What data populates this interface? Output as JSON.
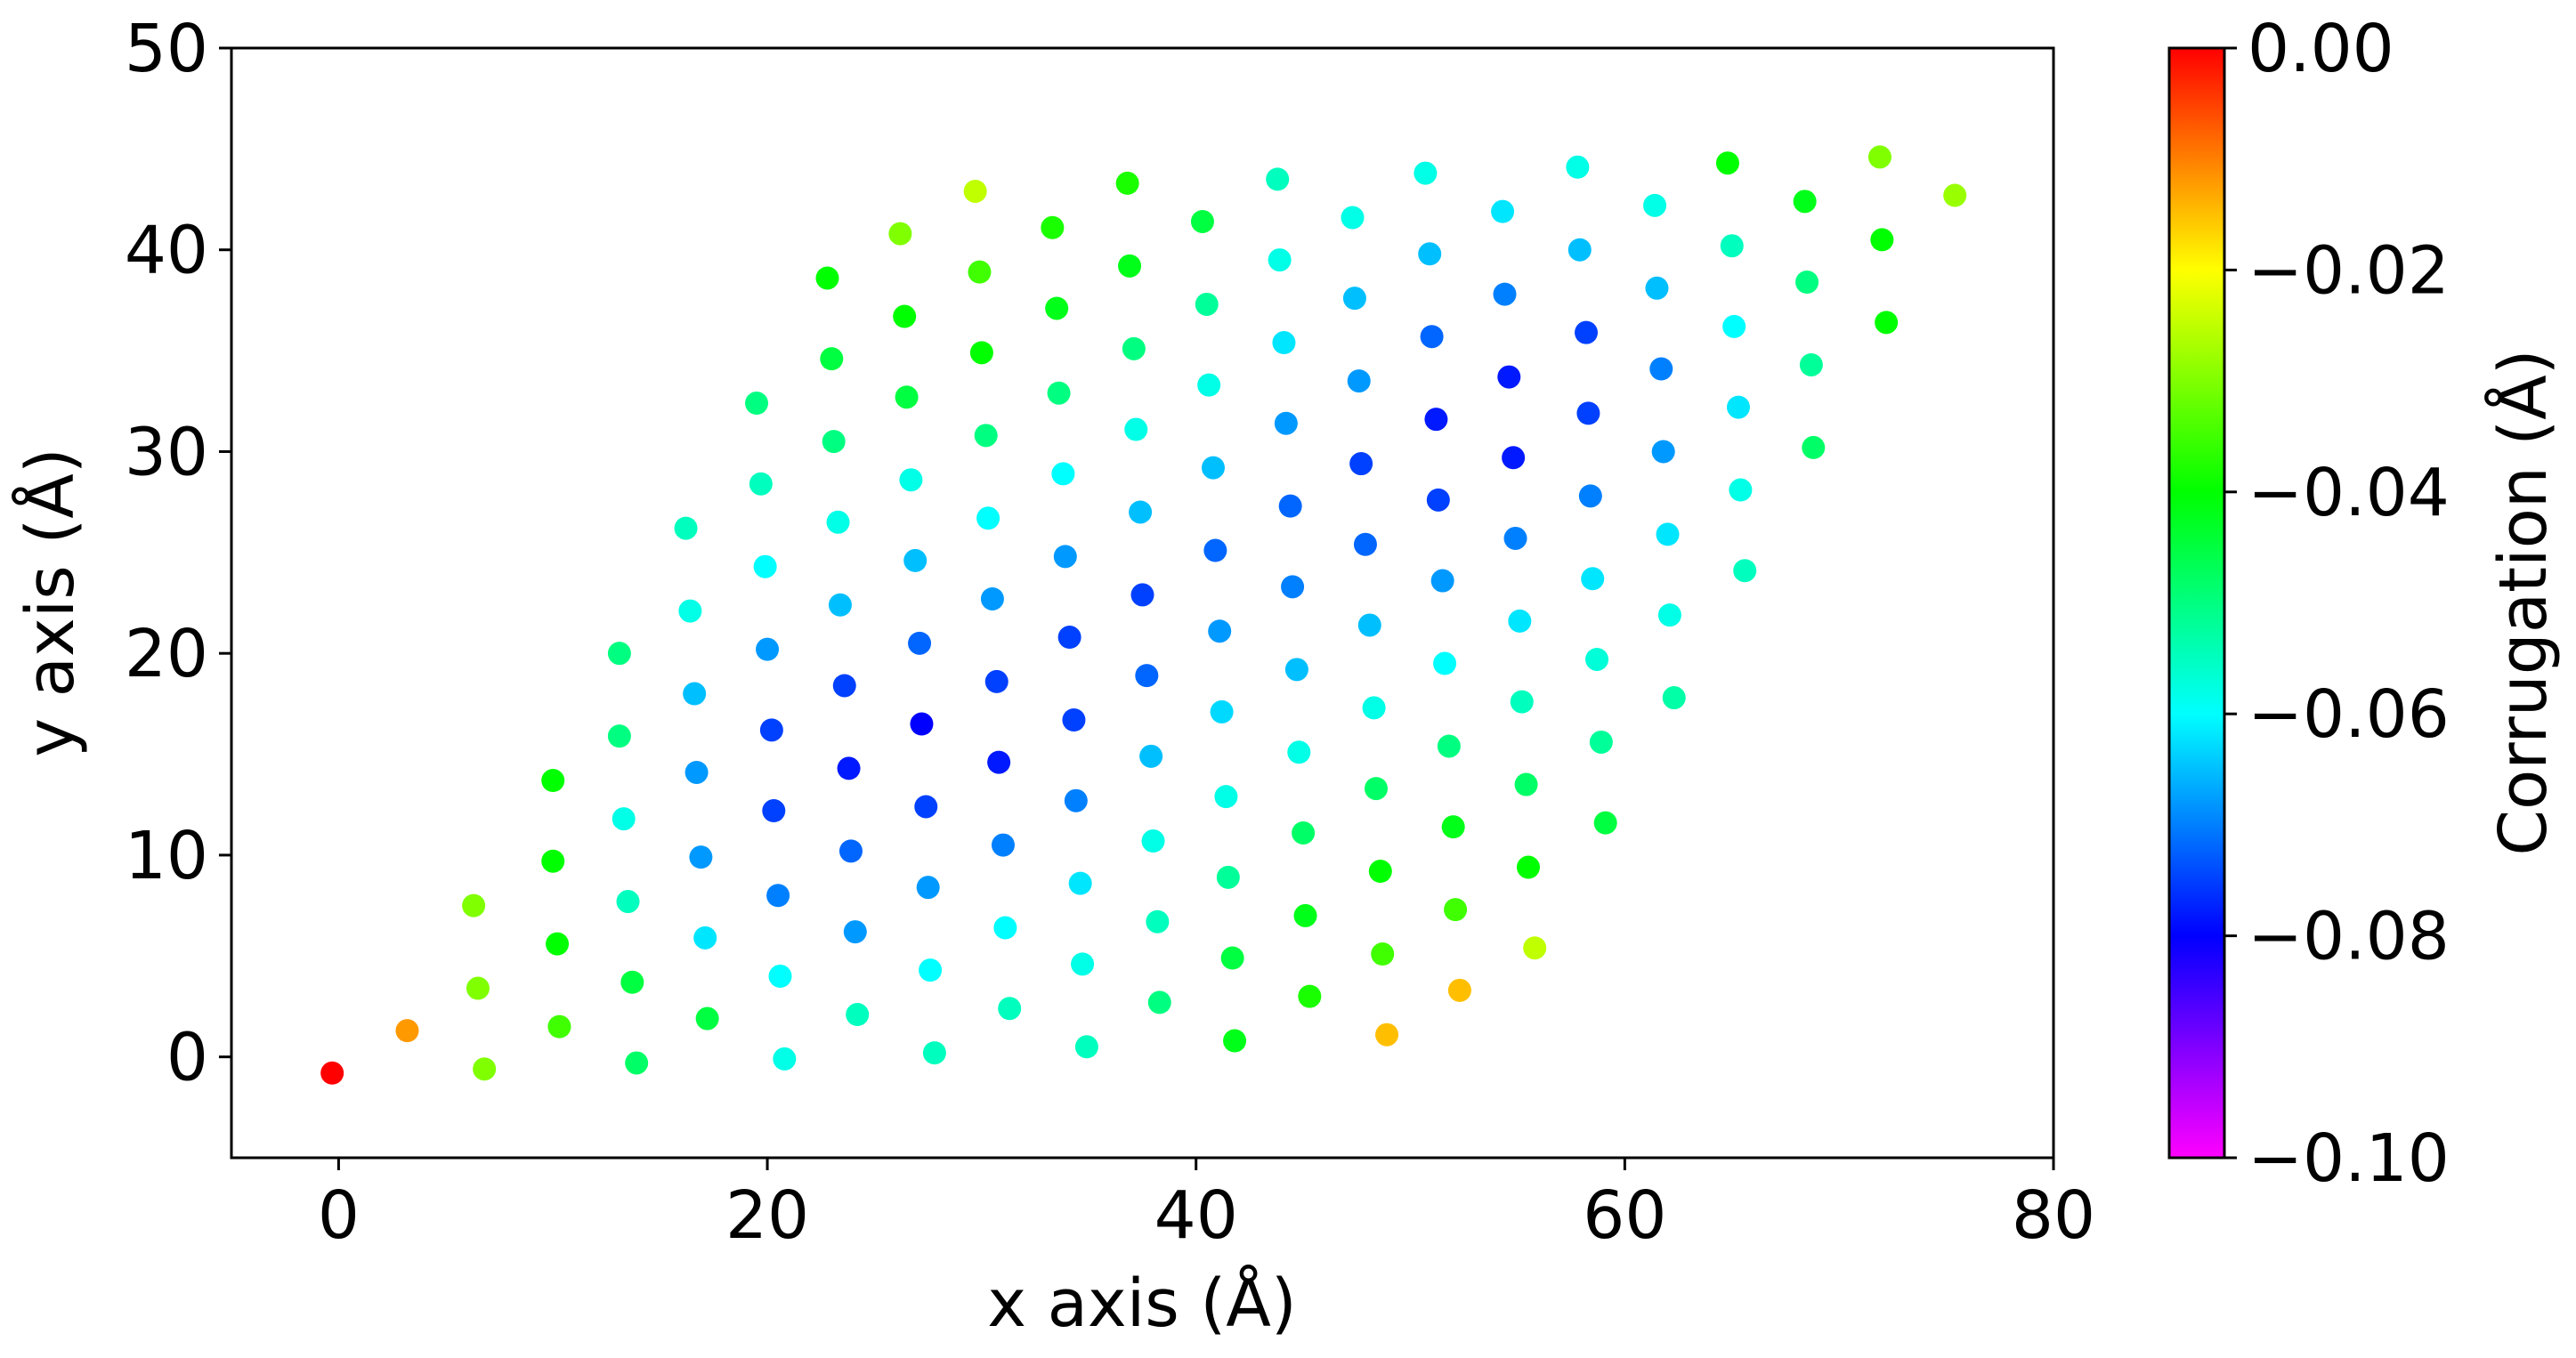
{
  "chart_data": {
    "type": "scatter",
    "xlabel": "x axis (Å)",
    "ylabel": "y axis (Å)",
    "xlim": [
      -5,
      80
    ],
    "ylim": [
      -5,
      50
    ],
    "xticks": [
      0,
      20,
      40,
      60,
      80
    ],
    "yticks": [
      0,
      10,
      20,
      30,
      40,
      50
    ],
    "grid": false,
    "x": [
      -0.3,
      3.2,
      6.8,
      6.5,
      6.3,
      10,
      10,
      10.2,
      10.3,
      13.1,
      13.1,
      13.3,
      13.5,
      13.7,
      13.9,
      16.2,
      16.4,
      16.6,
      16.7,
      16.9,
      17.1,
      17.2,
      19.5,
      19.7,
      19.9,
      20.0,
      20.2,
      20.3,
      20.5,
      20.6,
      20.8,
      22.8,
      23.0,
      23.1,
      23.3,
      23.4,
      23.6,
      23.8,
      23.9,
      24.1,
      24.2,
      26.2,
      26.4,
      26.5,
      26.7,
      26.9,
      27.1,
      27.2,
      27.4,
      27.5,
      27.6,
      27.8,
      29.7,
      29.9,
      30.0,
      30.2,
      30.3,
      30.5,
      30.7,
      30.8,
      31.0,
      31.1,
      31.3,
      33.3,
      33.5,
      33.6,
      33.8,
      33.9,
      34.1,
      34.3,
      34.4,
      34.6,
      34.7,
      34.9,
      36.8,
      36.9,
      37.1,
      37.2,
      37.4,
      37.5,
      37.7,
      37.9,
      38.0,
      38.2,
      38.3,
      40.3,
      40.5,
      40.6,
      40.8,
      40.9,
      41.1,
      41.2,
      41.4,
      41.5,
      41.7,
      41.8,
      43.8,
      43.9,
      44.1,
      44.2,
      44.4,
      44.5,
      44.7,
      44.8,
      45.0,
      45.1,
      45.3,
      47.3,
      47.4,
      47.6,
      47.7,
      47.9,
      48.1,
      48.3,
      48.4,
      48.6,
      48.7,
      48.9,
      50.7,
      50.9,
      51.0,
      51.2,
      51.3,
      51.5,
      51.6,
      51.8,
      52.0,
      52.1,
      52.3,
      54.3,
      54.4,
      54.6,
      54.8,
      54.9,
      55.1,
      55.2,
      55.4,
      55.5,
      55.8,
      57.8,
      57.9,
      58.2,
      58.3,
      58.4,
      58.5,
      58.7,
      58.9,
      59.1,
      61.4,
      61.5,
      61.7,
      61.8,
      62.0,
      62.1,
      62.3,
      64.8,
      65.0,
      65.1,
      65.3,
      65.4,
      65.6,
      68.4,
      68.5,
      68.7,
      68.8,
      71.9,
      72.0,
      72.2,
      75.4
    ],
    "values": [
      -0.8,
      1.3,
      -0.6,
      3.4,
      7.5,
      13.7,
      9.7,
      5.6,
      1.5,
      20,
      15.9,
      11.8,
      7.7,
      3.7,
      -0.3,
      26.2,
      22.1,
      18.0,
      14.1,
      9.9,
      5.9,
      1.9,
      32.4,
      28.4,
      24.3,
      20.2,
      16.2,
      12.2,
      8.0,
      4.0,
      -0.1,
      38.6,
      34.6,
      30.5,
      26.5,
      22.4,
      18.4,
      14.3,
      10.2,
      6.2,
      2.1,
      40.8,
      36.7,
      32.7,
      28.6,
      24.6,
      20.5,
      16.5,
      12.4,
      8.4,
      4.3,
      0.2,
      42.9,
      38.9,
      34.9,
      30.8,
      26.7,
      22.7,
      18.6,
      14.6,
      10.5,
      6.4,
      2.4,
      41.1,
      37.1,
      32.9,
      28.9,
      24.8,
      20.8,
      16.7,
      12.7,
      8.6,
      4.6,
      0.5,
      43.3,
      39.2,
      35.1,
      31.1,
      27.0,
      22.9,
      18.9,
      14.9,
      10.7,
      6.7,
      2.7,
      41.4,
      37.3,
      33.3,
      29.2,
      25.1,
      21.1,
      17.1,
      12.9,
      8.9,
      4.9,
      0.8,
      43.5,
      39.5,
      35.4,
      31.4,
      27.3,
      23.3,
      19.2,
      15.1,
      11.1,
      7.0,
      3.0,
      41.6,
      37.6,
      33.5,
      29.4,
      25.4,
      21.4,
      17.3,
      13.3,
      9.2,
      5.1,
      1.1,
      43.8,
      39.8,
      35.7,
      31.6,
      27.6,
      23.6,
      19.5,
      15.4,
      11.4,
      7.3,
      3.3,
      41.9,
      37.8,
      33.7,
      29.7,
      25.7,
      21.6,
      17.6,
      13.5,
      9.4,
      5.4,
      44.1,
      40.0,
      35.9,
      31.9,
      27.8,
      23.7,
      19.7,
      15.6,
      11.6,
      42.2,
      38.1,
      34.1,
      30.0,
      25.9,
      21.9,
      17.8,
      44.3,
      40.2,
      36.2,
      32.2,
      28.1,
      24.1,
      42.4,
      38.4,
      34.3,
      30.2,
      44.6,
      40.5,
      36.4,
      42.7
    ],
    "color_values": [
      0,
      -0.012,
      -0.03,
      -0.03,
      -0.03,
      -0.04,
      -0.04,
      -0.04,
      -0.035,
      -0.05,
      -0.05,
      -0.058,
      -0.055,
      -0.045,
      -0.048,
      -0.055,
      -0.058,
      -0.065,
      -0.068,
      -0.068,
      -0.062,
      -0.045,
      -0.05,
      -0.055,
      -0.06,
      -0.068,
      -0.075,
      -0.075,
      -0.07,
      -0.06,
      -0.058,
      -0.04,
      -0.045,
      -0.05,
      -0.058,
      -0.065,
      -0.075,
      -0.078,
      -0.072,
      -0.068,
      -0.055,
      -0.03,
      -0.04,
      -0.045,
      -0.058,
      -0.065,
      -0.072,
      -0.08,
      -0.075,
      -0.068,
      -0.06,
      -0.055,
      -0.025,
      -0.035,
      -0.04,
      -0.05,
      -0.06,
      -0.068,
      -0.075,
      -0.078,
      -0.07,
      -0.06,
      -0.055,
      -0.038,
      -0.042,
      -0.05,
      -0.06,
      -0.068,
      -0.075,
      -0.075,
      -0.07,
      -0.062,
      -0.058,
      -0.055,
      -0.038,
      -0.042,
      -0.05,
      -0.058,
      -0.065,
      -0.075,
      -0.072,
      -0.065,
      -0.058,
      -0.055,
      -0.05,
      -0.045,
      -0.052,
      -0.058,
      -0.065,
      -0.072,
      -0.068,
      -0.063,
      -0.058,
      -0.052,
      -0.045,
      -0.042,
      -0.055,
      -0.058,
      -0.062,
      -0.068,
      -0.072,
      -0.07,
      -0.065,
      -0.058,
      -0.048,
      -0.042,
      -0.038,
      -0.058,
      -0.065,
      -0.068,
      -0.075,
      -0.072,
      -0.065,
      -0.058,
      -0.048,
      -0.04,
      -0.035,
      -0.015,
      -0.058,
      -0.065,
      -0.072,
      -0.078,
      -0.075,
      -0.068,
      -0.06,
      -0.05,
      -0.042,
      -0.035,
      -0.015,
      -0.062,
      -0.07,
      -0.078,
      -0.078,
      -0.07,
      -0.062,
      -0.055,
      -0.048,
      -0.04,
      -0.025,
      -0.058,
      -0.065,
      -0.075,
      -0.075,
      -0.07,
      -0.062,
      -0.057,
      -0.052,
      -0.045,
      -0.058,
      -0.065,
      -0.07,
      -0.068,
      -0.062,
      -0.058,
      -0.053,
      -0.04,
      -0.055,
      -0.06,
      -0.062,
      -0.058,
      -0.055,
      -0.042,
      -0.05,
      -0.052,
      -0.048,
      -0.03,
      -0.04,
      -0.04,
      -0.028
    ],
    "colorbar": {
      "label": "Corrugation (Å)",
      "colormap": "gist_rainbow",
      "lim": [
        -0.1,
        0
      ],
      "ticks": [
        {
          "value": 0,
          "label": "0.00"
        },
        {
          "value": -0.02,
          "label": "−0.02"
        },
        {
          "value": -0.04,
          "label": "−0.04"
        },
        {
          "value": -0.06,
          "label": "−0.06"
        },
        {
          "value": -0.08,
          "label": "−0.08"
        },
        {
          "value": -0.1,
          "label": "−0.10"
        }
      ]
    }
  }
}
